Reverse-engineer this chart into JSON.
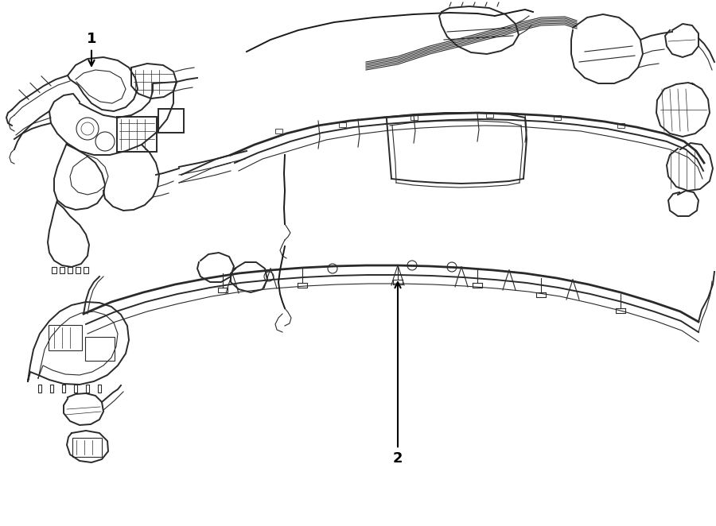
{
  "background_color": "#ffffff",
  "line_color": "#2a2a2a",
  "line_color_med": "#555555",
  "line_color_light": "#888888",
  "label1_text": "1",
  "label2_text": "2",
  "figsize": [
    9.0,
    6.62
  ],
  "dpi": 100,
  "lw_thick": 2.0,
  "lw_main": 1.4,
  "lw_thin": 0.8,
  "lw_hair": 0.5
}
